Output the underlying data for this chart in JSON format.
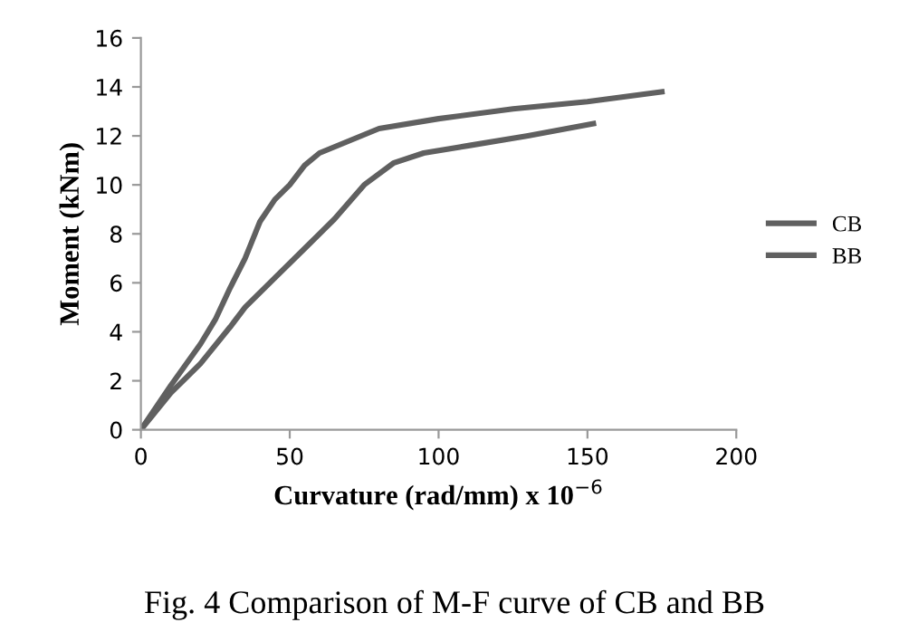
{
  "chart_data": {
    "type": "line",
    "xlabel": "Curvature (rad/mm) x 10$^{−6}$",
    "ylabel": "Moment (kNm)",
    "annotations": [
      "Fig. 4 Comparison of M-F curve of CB and BB"
    ],
    "series": [
      {
        "name": "CB",
        "color": "#606060",
        "x": [
          0,
          10,
          20,
          25,
          30,
          35,
          40,
          45,
          50,
          55,
          60,
          70,
          80,
          100,
          125,
          150,
          175
        ],
        "values": [
          0,
          1.8,
          3.5,
          4.5,
          5.8,
          7,
          8.5,
          9.4,
          10,
          10.8,
          11.3,
          11.8,
          12.3,
          12.7,
          13.1,
          13.4,
          13.8
        ]
      },
      {
        "name": "BB",
        "color": "#606060",
        "x": [
          0,
          10,
          20,
          30,
          35,
          45,
          55,
          65,
          75,
          85,
          95,
          110,
          130,
          152
        ],
        "values": [
          0,
          1.5,
          2.7,
          4.2,
          5,
          6.2,
          7.4,
          8.6,
          10,
          10.9,
          11.3,
          11.6,
          12,
          12.5
        ]
      }
    ],
    "xlim": [
      0,
      200
    ],
    "xticks": [
      0,
      50,
      100,
      150,
      200
    ],
    "ylim": [
      0,
      16
    ],
    "yticks": [
      0,
      2,
      4,
      6,
      8,
      10,
      12,
      14,
      16
    ],
    "legend": "right",
    "grid": false,
    "marker": "none",
    "line_style": "solid"
  }
}
